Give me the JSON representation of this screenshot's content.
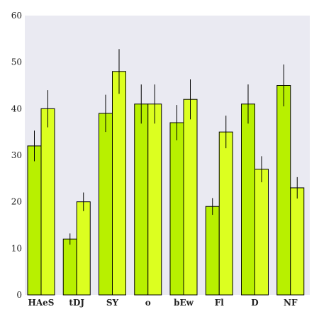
{
  "chart_data": {
    "type": "bar",
    "title": "",
    "xlabel": "",
    "ylabel": "",
    "ylim": [
      0,
      60
    ],
    "yticks": [
      0,
      10,
      20,
      30,
      40,
      50,
      60
    ],
    "grid": false,
    "categories": [
      "HAeS",
      "tDJ",
      "SY",
      "o",
      "bEw",
      "Fl",
      "D",
      "NF"
    ],
    "series": [
      {
        "values": [
          32,
          12,
          39,
          41,
          37,
          19,
          41,
          45
        ],
        "errors": [
          3.3,
          1.2,
          4.0,
          4.2,
          3.8,
          1.8,
          4.2,
          4.5
        ],
        "color": "#b8f000"
      },
      {
        "values": [
          40,
          20,
          48,
          41,
          42,
          35,
          27,
          23
        ],
        "errors": [
          4.0,
          2.0,
          4.8,
          4.2,
          4.3,
          3.5,
          2.8,
          2.3
        ],
        "color": "#dcff20"
      }
    ],
    "colors": {
      "plot_background": "#eaeaf2",
      "bar_edge": "#000000",
      "error_bar": "#000000"
    }
  }
}
